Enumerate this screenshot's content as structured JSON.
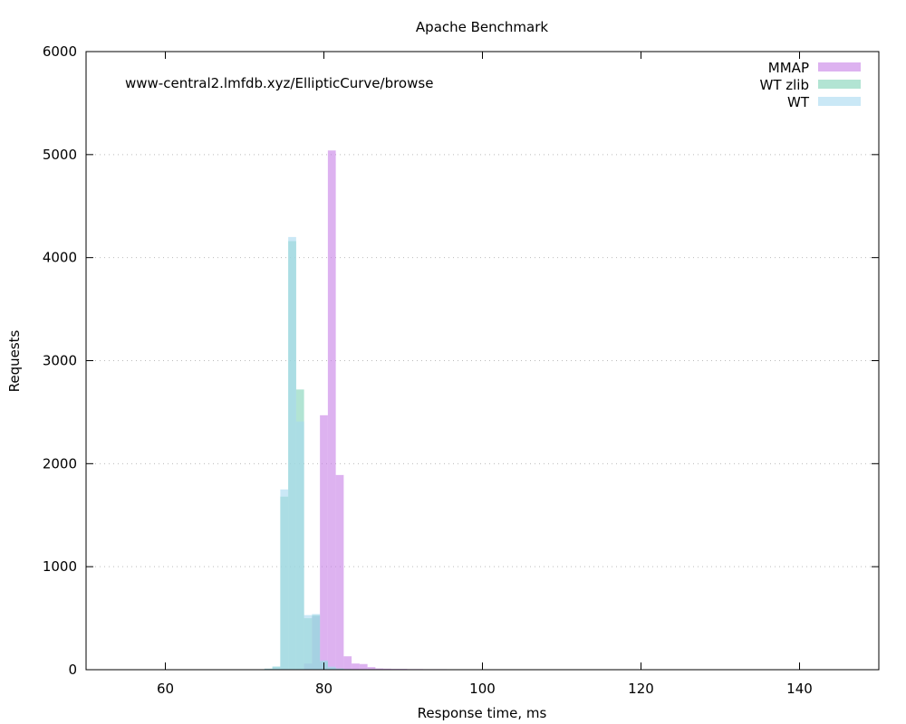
{
  "chart_data": {
    "type": "bar",
    "title": "Apache Benchmark",
    "annotation": "www-central2.lmfdb.xyz/EllipticCurve/browse",
    "xlabel": "Response time, ms",
    "ylabel": "Requests",
    "xlim": [
      50,
      150
    ],
    "ylim": [
      0,
      6000
    ],
    "x_ticks": [
      60,
      80,
      100,
      120,
      140
    ],
    "y_ticks": [
      0,
      1000,
      2000,
      3000,
      4000,
      5000,
      6000
    ],
    "grid": "horizontal dotted",
    "legend_position": "top-right",
    "bin_width": 1,
    "series": [
      {
        "name": "MMAP",
        "color": "#c77ee6",
        "bins": [
          [
            77,
            5
          ],
          [
            78,
            60
          ],
          [
            79,
            520
          ],
          [
            80,
            2470
          ],
          [
            81,
            5040
          ],
          [
            82,
            1890
          ],
          [
            83,
            130
          ],
          [
            84,
            60
          ],
          [
            85,
            55
          ],
          [
            86,
            25
          ],
          [
            87,
            12
          ],
          [
            88,
            10
          ],
          [
            89,
            8
          ],
          [
            90,
            8
          ],
          [
            91,
            6
          ],
          [
            92,
            6
          ],
          [
            93,
            5
          ],
          [
            94,
            5
          ],
          [
            95,
            5
          ],
          [
            96,
            4
          ],
          [
            97,
            4
          ],
          [
            98,
            3
          ],
          [
            99,
            3
          ],
          [
            100,
            3
          ]
        ]
      },
      {
        "name": "WT zlib",
        "color": "#7fd2b6",
        "bins": [
          [
            73,
            10
          ],
          [
            74,
            30
          ],
          [
            75,
            1680
          ],
          [
            76,
            4160
          ],
          [
            77,
            2720
          ],
          [
            78,
            500
          ],
          [
            79,
            530
          ],
          [
            80,
            80
          ],
          [
            81,
            20
          ],
          [
            82,
            10
          ],
          [
            83,
            5
          ],
          [
            84,
            4
          ],
          [
            85,
            3
          ],
          [
            86,
            2
          ]
        ]
      },
      {
        "name": "WT",
        "color": "#a7d9f0",
        "bins": [
          [
            73,
            10
          ],
          [
            74,
            30
          ],
          [
            75,
            1750
          ],
          [
            76,
            4200
          ],
          [
            77,
            2410
          ],
          [
            78,
            530
          ],
          [
            79,
            540
          ],
          [
            80,
            90
          ],
          [
            81,
            30
          ],
          [
            82,
            12
          ],
          [
            83,
            6
          ],
          [
            84,
            4
          ],
          [
            85,
            3
          ],
          [
            86,
            2
          ],
          [
            104,
            4
          ]
        ]
      }
    ]
  }
}
